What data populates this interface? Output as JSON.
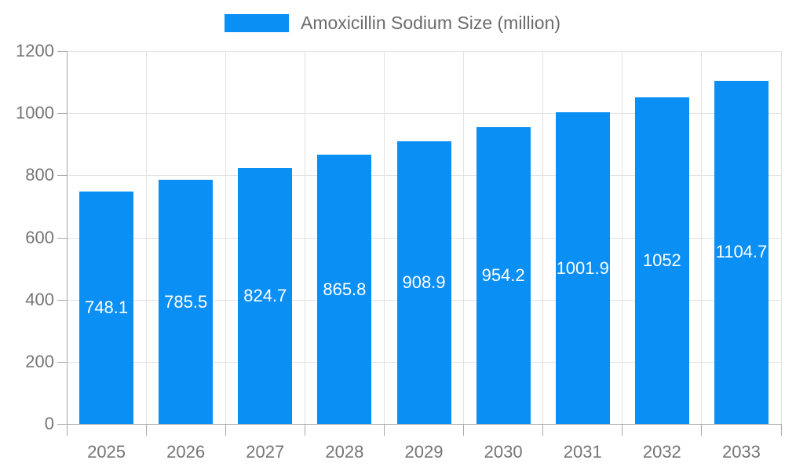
{
  "chart_data": {
    "type": "bar",
    "legend": {
      "label": "Amoxicillin Sodium Size (million)",
      "position": "top-center"
    },
    "categories": [
      "2025",
      "2026",
      "2027",
      "2028",
      "2029",
      "2030",
      "2031",
      "2032",
      "2033"
    ],
    "series": [
      {
        "name": "Amoxicillin Sodium Size (million)",
        "values": [
          748.1,
          785.5,
          824.7,
          865.8,
          908.9,
          954.2,
          1001.9,
          1052,
          1104.7
        ]
      }
    ],
    "value_labels": [
      "748.1",
      "785.5",
      "824.7",
      "865.8",
      "908.9",
      "954.2",
      "1001.9",
      "1052",
      "1104.7"
    ],
    "xlabel": "",
    "ylabel": "",
    "ylim": [
      0,
      1200
    ],
    "ytick_step": 200,
    "yticks": [
      "0",
      "200",
      "400",
      "600",
      "800",
      "1000",
      "1200"
    ],
    "grid": true,
    "colors": {
      "bar": "#0a8ff5",
      "grid": "#e2e2e2",
      "axis": "#a8a8a8",
      "tick": "#a8a8a8",
      "axis_label": "#757575",
      "legend_text": "#6b6b6b",
      "bar_label": "#ffffff",
      "background": "#ffffff"
    }
  }
}
